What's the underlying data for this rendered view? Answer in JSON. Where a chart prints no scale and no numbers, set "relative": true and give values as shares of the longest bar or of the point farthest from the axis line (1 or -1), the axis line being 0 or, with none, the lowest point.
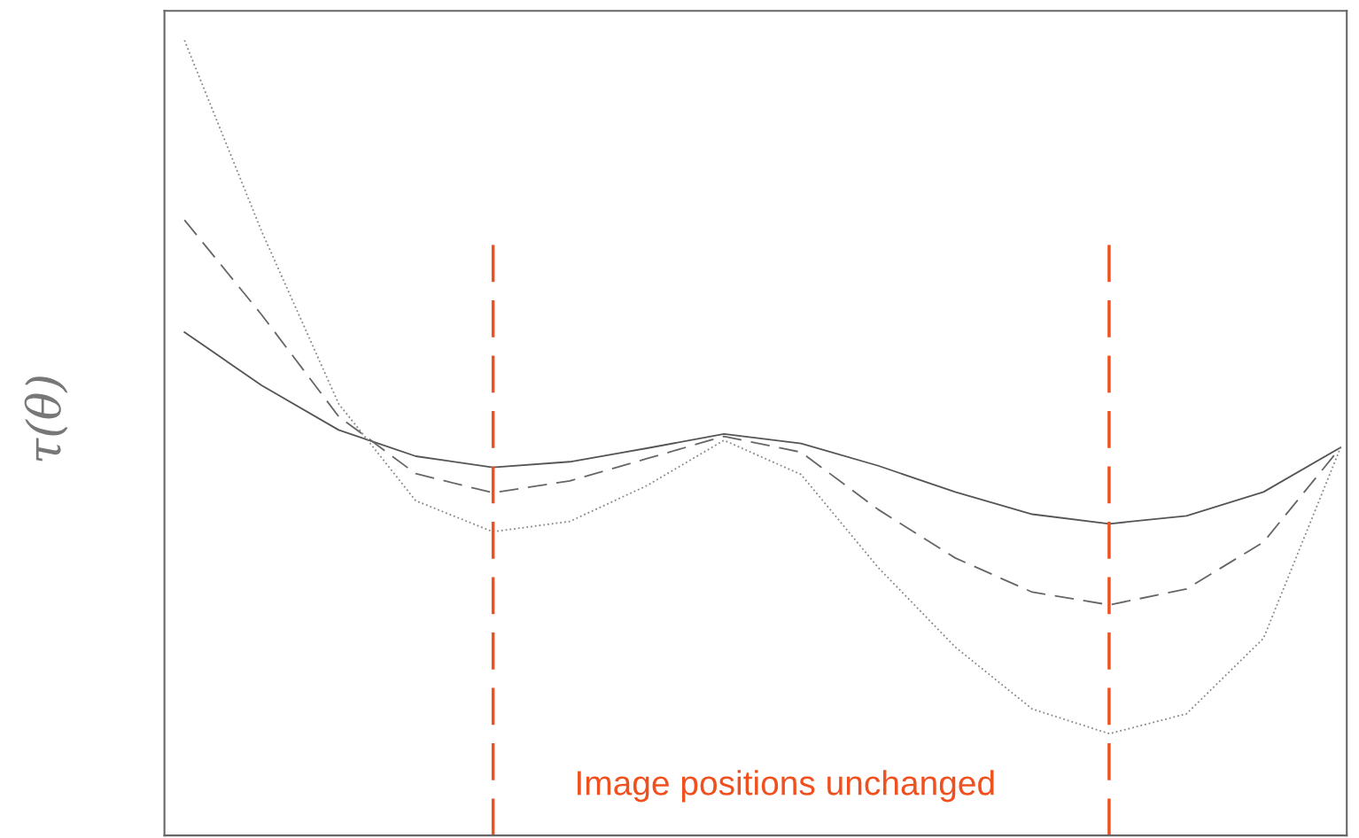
{
  "chart_data": {
    "type": "line",
    "relative": true,
    "ylabel": "τ(θ)",
    "annotations": [
      "Image positions unchanged"
    ],
    "categories": [
      null,
      null,
      null,
      null,
      null,
      null,
      null,
      null,
      null,
      null,
      null,
      null,
      null,
      null,
      null,
      null
    ],
    "grid": false,
    "marker": "none",
    "series": [
      {
        "color": "#555555",
        "line_style": "solid",
        "values": [
          0.633,
          0.566,
          0.51,
          0.477,
          0.463,
          0.47,
          0.487,
          0.505,
          0.493,
          0.465,
          0.432,
          0.404,
          0.392,
          0.402,
          0.432,
          0.488
        ]
      },
      {
        "color": "#666666",
        "line_style": "dashed",
        "values": [
          0.774,
          0.655,
          0.527,
          0.455,
          0.431,
          0.446,
          0.474,
          0.502,
          0.482,
          0.41,
          0.349,
          0.306,
          0.29,
          0.31,
          0.369,
          0.488
        ]
      },
      {
        "color": "#888888",
        "line_style": "dotted",
        "values": [
          1.0,
          0.76,
          0.543,
          0.421,
          0.382,
          0.395,
          0.44,
          0.497,
          0.454,
          0.337,
          0.237,
          0.159,
          0.128,
          0.153,
          0.248,
          0.488
        ]
      }
    ]
  }
}
